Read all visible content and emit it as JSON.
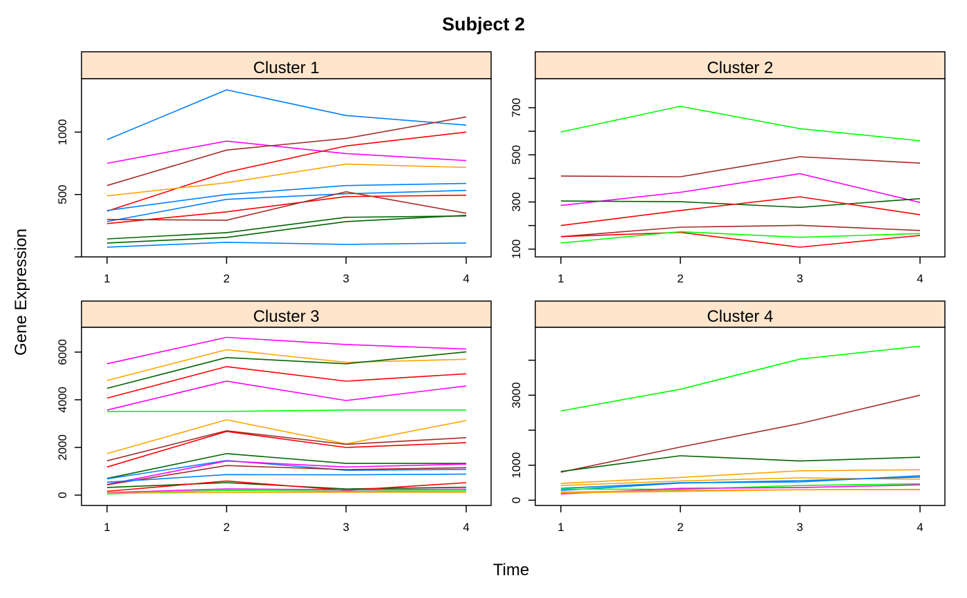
{
  "chart_data": {
    "type": "line",
    "title": "Subject 2",
    "xlabel": "Time",
    "ylabel": "Gene Expression",
    "strip_color": "#FFE5CC",
    "layout": "2x2",
    "x": [
      1,
      2,
      3,
      4
    ],
    "x_tick_labels": [
      "1",
      "2",
      "3",
      "4"
    ],
    "panels": [
      {
        "name": "Cluster 1",
        "ylim": [
          0,
          1428
        ],
        "y_ticks": [
          0,
          500,
          1000
        ],
        "y_tick_labels": [
          "",
          "500",
          "1000"
        ],
        "y_axis_side": "left",
        "x_axis_side": "bottom",
        "series": [
          {
            "color": "#0080FF",
            "values": [
              939,
              1339,
              1133,
              1056
            ]
          },
          {
            "color": "#FF00FF",
            "values": [
              750,
              928,
              828,
              772
            ]
          },
          {
            "color": "#A52A2A",
            "values": [
              572,
              856,
              950,
              1122
            ]
          },
          {
            "color": "#FF0000",
            "values": [
              367,
              678,
              889,
              1000
            ]
          },
          {
            "color": "#FFA500",
            "values": [
              489,
              594,
              744,
              717
            ]
          },
          {
            "color": "#0080FF",
            "values": [
              372,
              500,
              572,
              589
            ]
          },
          {
            "color": "#0080FF",
            "values": [
              283,
              461,
              506,
              533
            ]
          },
          {
            "color": "#FF0000",
            "values": [
              267,
              361,
              483,
              494
            ]
          },
          {
            "color": "#A52A2A",
            "values": [
              300,
              294,
              522,
              350
            ]
          },
          {
            "color": "#006400",
            "values": [
              144,
              194,
              317,
              328
            ]
          },
          {
            "color": "#006400",
            "values": [
              111,
              156,
              283,
              333
            ]
          },
          {
            "color": "#0080FF",
            "values": [
              78,
              117,
              100,
              111
            ]
          }
        ]
      },
      {
        "name": "Cluster 2",
        "ylim": [
          67,
          823
        ],
        "y_ticks": [
          100,
          200,
          300,
          400,
          500,
          600,
          700
        ],
        "y_tick_labels": [
          "100",
          "",
          "300",
          "",
          "500",
          "",
          "700"
        ],
        "y_axis_side": "left",
        "x_axis_side": "bottom",
        "series": [
          {
            "color": "#00FF00",
            "values": [
              597,
              706,
              611,
              560
            ]
          },
          {
            "color": "#A52A2A",
            "values": [
              410,
              407,
              492,
              465
            ]
          },
          {
            "color": "#FF00FF",
            "values": [
              285,
              341,
              420,
              298
            ]
          },
          {
            "color": "#006400",
            "values": [
              304,
              301,
              277,
              314
            ]
          },
          {
            "color": "#FF0000",
            "values": [
              200,
              264,
              322,
              246
            ]
          },
          {
            "color": "#A52A2A",
            "values": [
              153,
              193,
              201,
              179
            ]
          },
          {
            "color": "#FF0000",
            "values": [
              153,
              171,
              108,
              158
            ]
          },
          {
            "color": "#00FF00",
            "values": [
              126,
              174,
              150,
              166
            ]
          }
        ]
      },
      {
        "name": "Cluster 3",
        "ylim": [
          -435,
          7040
        ],
        "y_ticks": [
          0,
          2000,
          4000,
          6000
        ],
        "y_tick_labels": [
          "0",
          "2000",
          "4000",
          "6000"
        ],
        "y_axis_side": "left",
        "x_axis_side": "bottom",
        "series": [
          {
            "color": "#FF00FF",
            "values": [
              5510,
              6620,
              6320,
              6130
            ]
          },
          {
            "color": "#FFA500",
            "values": [
              4810,
              6100,
              5570,
              5700
            ]
          },
          {
            "color": "#006400",
            "values": [
              4480,
              5770,
              5510,
              6010
            ]
          },
          {
            "color": "#FF0000",
            "values": [
              4070,
              5390,
              4780,
              5090
            ]
          },
          {
            "color": "#FF00FF",
            "values": [
              3570,
              4780,
              3970,
              4580
            ]
          },
          {
            "color": "#00FF00",
            "values": [
              3510,
              3510,
              3570,
              3570
            ]
          },
          {
            "color": "#FFA500",
            "values": [
              1740,
              3160,
              2150,
              3130
            ]
          },
          {
            "color": "#A52A2A",
            "values": [
              1440,
              2700,
              2130,
              2410
            ]
          },
          {
            "color": "#FF0000",
            "values": [
              1180,
              2670,
              2000,
              2200
            ]
          },
          {
            "color": "#006400",
            "values": [
              700,
              1740,
              1330,
              1330
            ]
          },
          {
            "color": "#0080FF",
            "values": [
              680,
              1450,
              1040,
              1080
            ]
          },
          {
            "color": "#FF00FF",
            "values": [
              450,
              1430,
              1180,
              1300
            ]
          },
          {
            "color": "#A52A2A",
            "values": [
              430,
              1240,
              1070,
              1150
            ]
          },
          {
            "color": "#0080FF",
            "values": [
              540,
              860,
              850,
              880
            ]
          },
          {
            "color": "#006400",
            "values": [
              320,
              520,
              260,
              330
            ]
          },
          {
            "color": "#FF0000",
            "values": [
              160,
              590,
              200,
              520
            ]
          },
          {
            "color": "#FF00FF",
            "values": [
              100,
              260,
              220,
              250
            ]
          },
          {
            "color": "#00FF00",
            "values": [
              50,
              200,
              160,
              180
            ]
          },
          {
            "color": "#FFA500",
            "values": [
              80,
              110,
              120,
              120
            ]
          }
        ]
      },
      {
        "name": "Cluster 4",
        "ylim": [
          -150,
          4940
        ],
        "y_ticks": [
          0,
          1000,
          2000,
          3000,
          4000
        ],
        "y_tick_labels": [
          "0",
          "1000",
          "",
          "3000",
          ""
        ],
        "y_axis_side": "left",
        "x_axis_side": "bottom",
        "series": [
          {
            "color": "#00FF00",
            "values": [
              2550,
              3170,
              4030,
              4400
            ]
          },
          {
            "color": "#A52A2A",
            "values": [
              800,
              1520,
              2190,
              3000
            ]
          },
          {
            "color": "#006400",
            "values": [
              820,
              1270,
              1120,
              1230
            ]
          },
          {
            "color": "#FFA500",
            "values": [
              480,
              650,
              840,
              870
            ]
          },
          {
            "color": "#FFA500",
            "values": [
              420,
              550,
              640,
              600
            ]
          },
          {
            "color": "#0080FF",
            "values": [
              340,
              500,
              520,
              700
            ]
          },
          {
            "color": "#0080FF",
            "values": [
              280,
              490,
              560,
              660
            ]
          },
          {
            "color": "#00FF00",
            "values": [
              320,
              310,
              420,
              470
            ]
          },
          {
            "color": "#FF00FF",
            "values": [
              180,
              340,
              360,
              440
            ]
          },
          {
            "color": "#DAA520",
            "values": [
              230,
              280,
              300,
              300
            ]
          },
          {
            "color": "#FFA500",
            "values": [
              210,
              250,
              300,
              310
            ]
          }
        ]
      }
    ]
  }
}
